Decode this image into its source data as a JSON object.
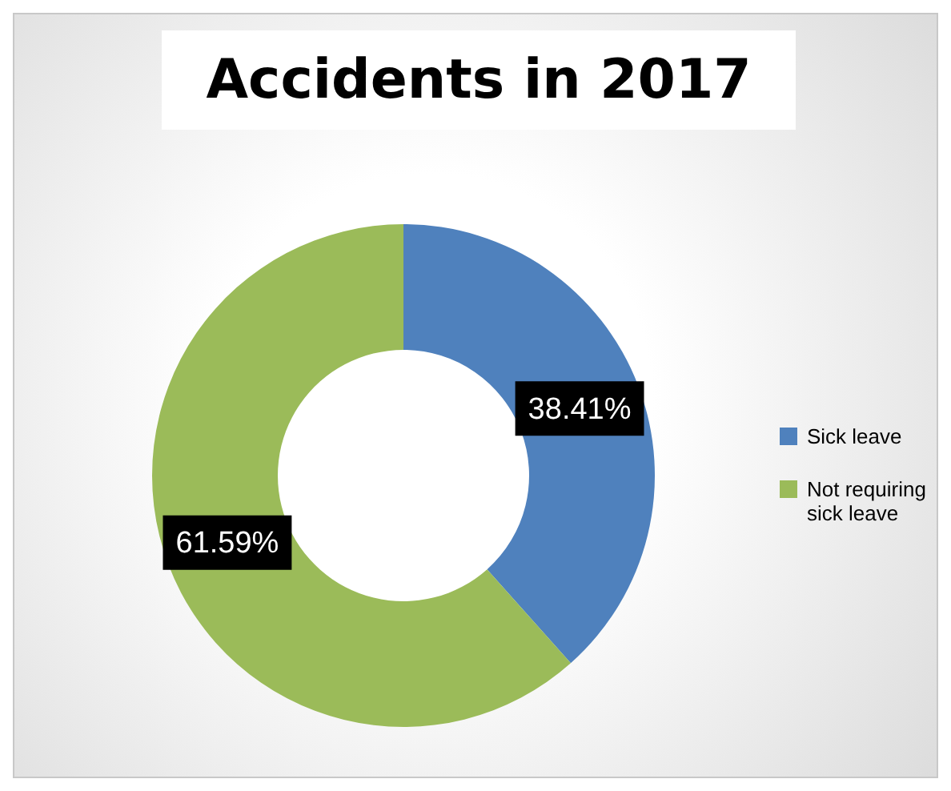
{
  "chart_data": {
    "type": "donut",
    "title": "Accidents in 2017",
    "categories": [
      "Sick leave",
      "Not requiring sick leave"
    ],
    "values": [
      38.41,
      61.59
    ],
    "colors": [
      "#4f81bd",
      "#9bbb59"
    ],
    "value_labels": [
      "38.41%",
      "61.59%"
    ],
    "legend": "right"
  }
}
